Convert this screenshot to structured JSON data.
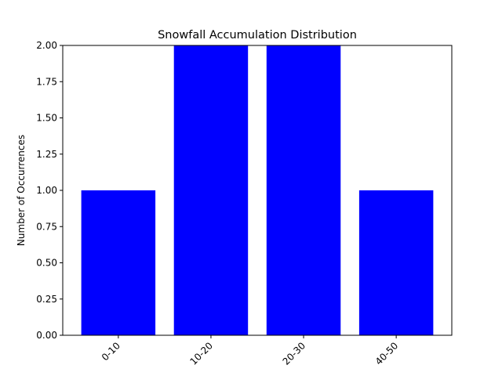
{
  "chart_data": {
    "type": "bar",
    "title": "Snowfall Accumulation Distribution",
    "xlabel": "",
    "ylabel": "Number of Occurrences",
    "categories": [
      "0-10",
      "10-20",
      "20-30",
      "40-50"
    ],
    "values": [
      1,
      2,
      2,
      1
    ],
    "ylim": [
      0,
      2.0
    ],
    "yticks": [
      "0.00",
      "0.25",
      "0.50",
      "0.75",
      "1.00",
      "1.25",
      "1.50",
      "1.75",
      "2.00"
    ],
    "bar_color": "#0000ff",
    "grid": false,
    "legend": "none"
  }
}
